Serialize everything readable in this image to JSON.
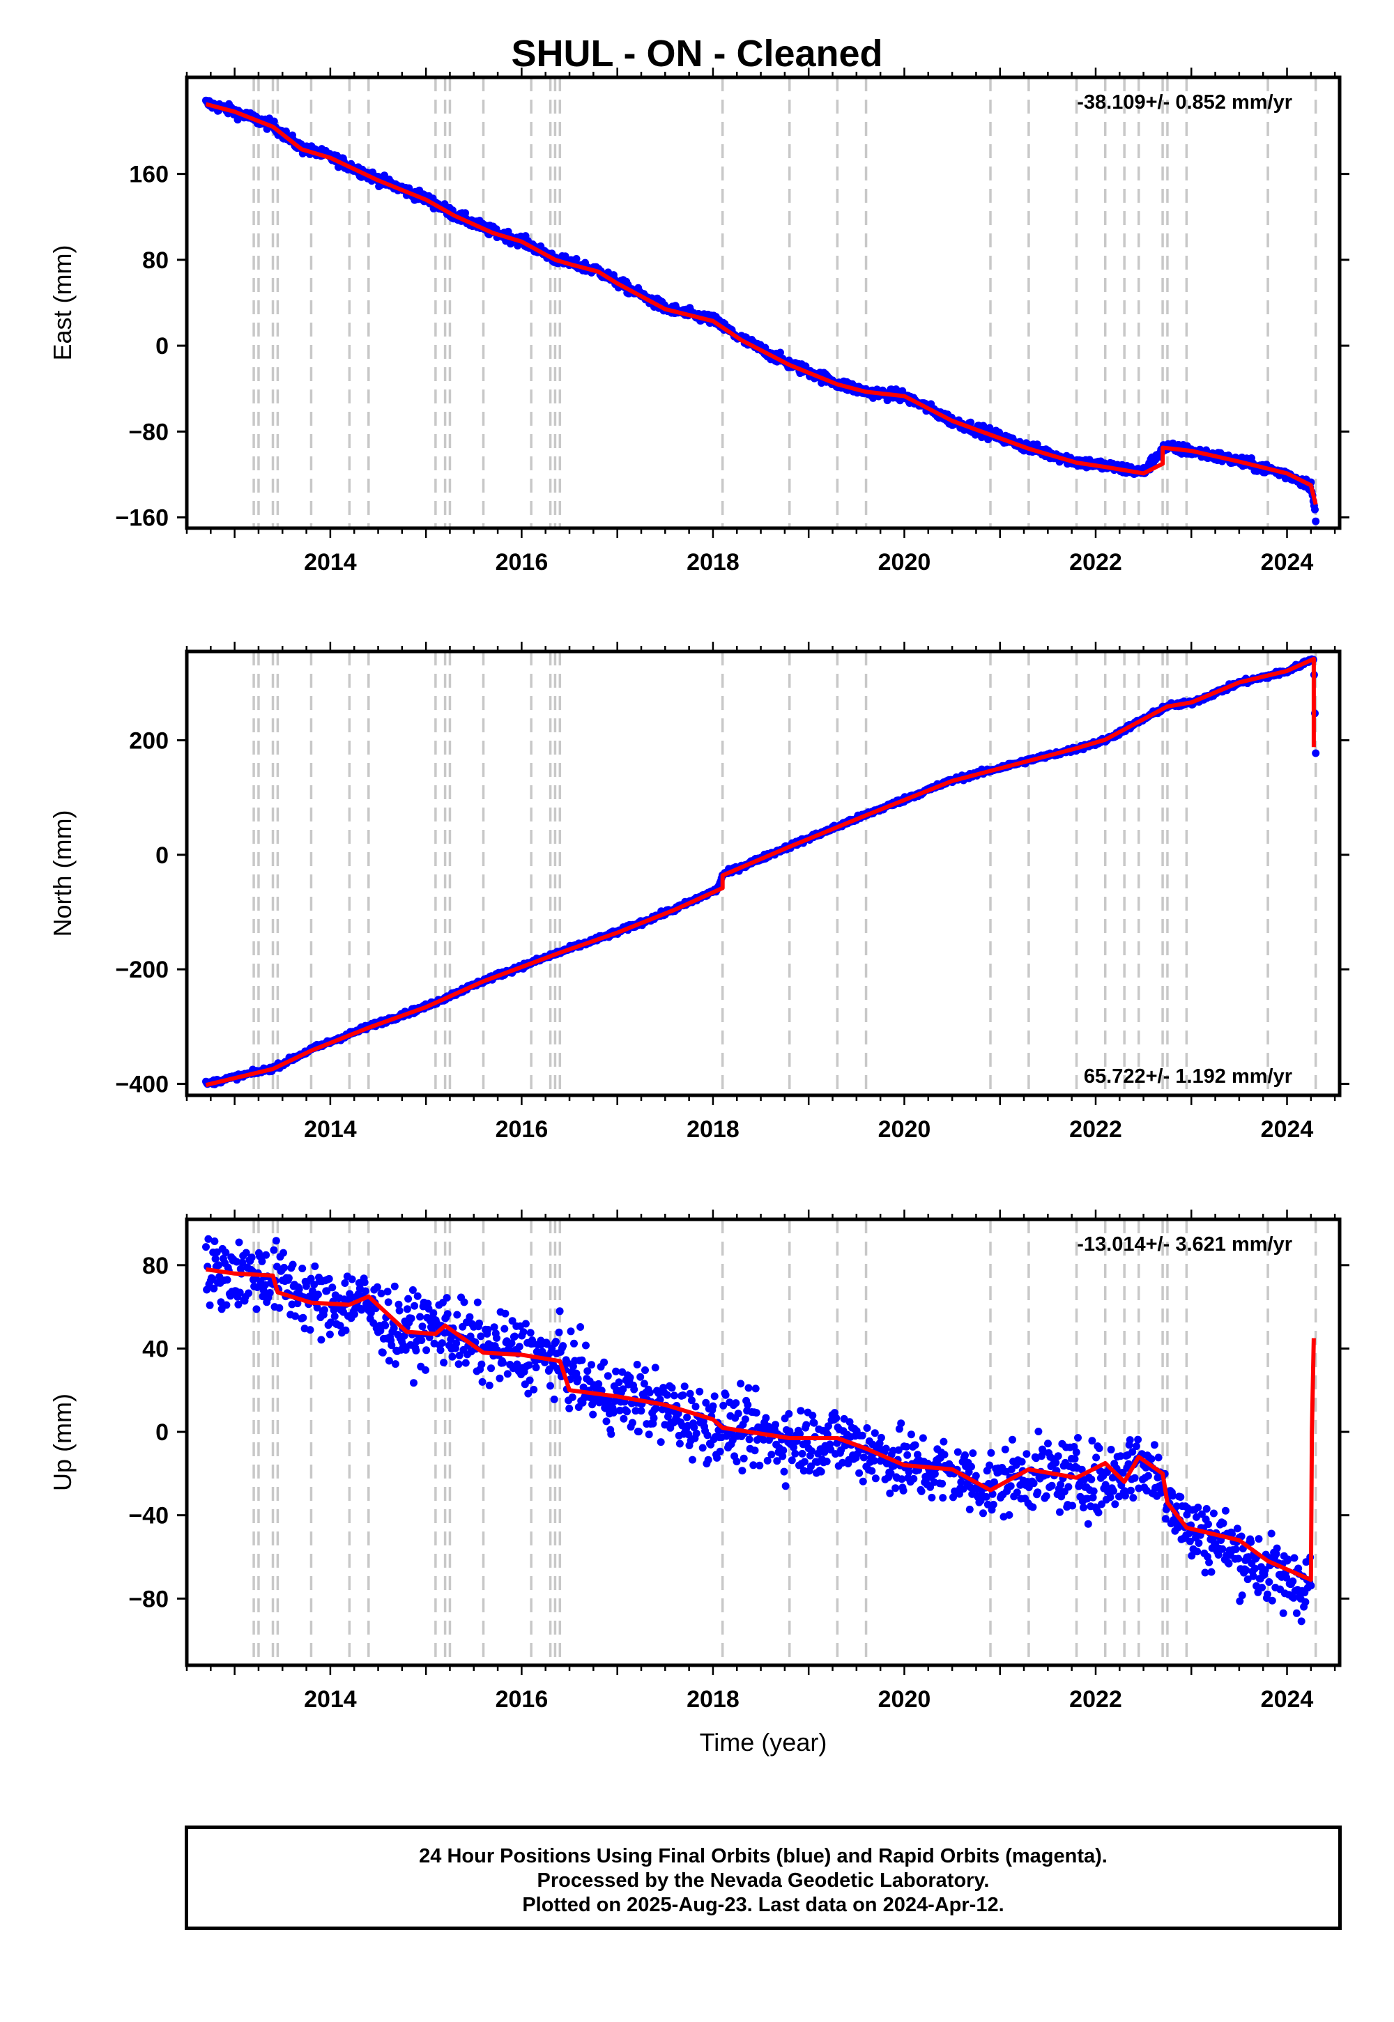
{
  "title": "SHUL  - ON - Cleaned",
  "footer": {
    "line1": "24 Hour Positions Using Final Orbits (blue) and Rapid Orbits (magenta).",
    "line2": "Processed by the Nevada Geodetic Laboratory.",
    "line3": "Plotted on 2025-Aug-23. Last data on 2024-Apr-12."
  },
  "colors": {
    "points": "#0000ff",
    "model": "#ff0000",
    "steps": "#c8c8c8",
    "axis": "#000000"
  },
  "steps": [
    2013.2,
    2013.25,
    2013.4,
    2013.45,
    2013.8,
    2014.2,
    2014.4,
    2015.1,
    2015.2,
    2015.25,
    2015.6,
    2016.1,
    2016.3,
    2016.35,
    2016.4,
    2018.1,
    2018.8,
    2019.3,
    2019.6,
    2020.9,
    2021.3,
    2021.8,
    2022.1,
    2022.3,
    2022.45,
    2022.7,
    2022.75,
    2022.95,
    2023.8,
    2024.3
  ],
  "chart_data": [
    {
      "type": "scatter",
      "panel": "east",
      "ylabel": "East (mm)",
      "xlabel": "",
      "rate_label": "-38.109+/- 0.852 mm/yr",
      "rate_position": "top-right",
      "xlim": [
        2012.5,
        2024.55
      ],
      "ylim": [
        -170,
        250
      ],
      "yticks": [
        160,
        80,
        0,
        -80,
        -160
      ],
      "ytick_labels": [
        "160",
        "80",
        "0",
        "−80",
        "−160"
      ],
      "xticks": [
        2014,
        2016,
        2018,
        2020,
        2022,
        2024
      ],
      "xtick_labels": [
        "2014",
        "2016",
        "2018",
        "2020",
        "2022",
        "2024"
      ],
      "series": [
        {
          "role": "observations",
          "scatter": 3.5,
          "x": [
            2012.7,
            2013.0,
            2013.4,
            2013.7,
            2014.0,
            2014.5,
            2015.0,
            2015.3,
            2015.7,
            2016.0,
            2016.35,
            2016.5,
            2016.8,
            2017.0,
            2017.5,
            2018.0,
            2018.3,
            2018.8,
            2019.3,
            2019.6,
            2020.0,
            2020.5,
            2020.9,
            2021.3,
            2021.8,
            2022.1,
            2022.5,
            2022.7,
            2022.75,
            2023.0,
            2023.5,
            2024.0,
            2024.25,
            2024.3
          ],
          "y": [
            226,
            218,
            205,
            184,
            176,
            155,
            137,
            122,
            106,
            98,
            81,
            77,
            70,
            59,
            35,
            24,
            6,
            -17,
            -35,
            -43,
            -47,
            -70,
            -82,
            -95,
            -108,
            -112,
            -118,
            -96,
            -95,
            -98,
            -108,
            -120,
            -130,
            -160
          ]
        },
        {
          "role": "model",
          "x": [
            2012.7,
            2013.0,
            2013.4,
            2013.7,
            2014.0,
            2014.5,
            2015.0,
            2015.3,
            2015.7,
            2016.0,
            2016.35,
            2016.5,
            2016.8,
            2017.0,
            2017.5,
            2018.0,
            2018.3,
            2018.8,
            2019.3,
            2019.6,
            2020.0,
            2020.5,
            2020.9,
            2021.3,
            2021.8,
            2022.1,
            2022.5,
            2022.7,
            2022.7,
            2023.0,
            2023.5,
            2024.0,
            2024.25,
            2024.3
          ],
          "y": [
            225,
            218,
            204,
            183,
            175,
            154,
            136,
            121,
            105,
            97,
            80,
            76,
            69,
            58,
            34,
            23,
            5,
            -18,
            -36,
            -43,
            -47,
            -70,
            -83,
            -96,
            -109,
            -113,
            -119,
            -110,
            -95,
            -98,
            -108,
            -119,
            -130,
            -148
          ]
        }
      ]
    },
    {
      "type": "scatter",
      "panel": "north",
      "ylabel": "North (mm)",
      "xlabel": "",
      "rate_label": "65.722+/- 1.192 mm/yr",
      "rate_position": "bottom-right",
      "xlim": [
        2012.5,
        2024.55
      ],
      "ylim": [
        -420,
        355
      ],
      "yticks": [
        200,
        0,
        -200,
        -400
      ],
      "ytick_labels": [
        "200",
        "0",
        "−200",
        "−400"
      ],
      "xticks": [
        2014,
        2016,
        2018,
        2020,
        2022,
        2024
      ],
      "xtick_labels": [
        "2014",
        "2016",
        "2018",
        "2020",
        "2022",
        "2024"
      ],
      "series": [
        {
          "role": "observations",
          "scatter": 3,
          "x": [
            2012.7,
            2013.4,
            2013.8,
            2014.4,
            2015.0,
            2015.6,
            2016.4,
            2017.0,
            2017.6,
            2018.05,
            2018.1,
            2018.8,
            2019.6,
            2020.5,
            2021.3,
            2021.8,
            2022.1,
            2022.75,
            2023.0,
            2023.5,
            2024.0,
            2024.28,
            2024.3
          ],
          "y": [
            -400,
            -373,
            -340,
            -300,
            -265,
            -220,
            -170,
            -135,
            -95,
            -60,
            -35,
            15,
            70,
            130,
            165,
            185,
            200,
            260,
            265,
            300,
            320,
            343,
            182
          ]
        },
        {
          "role": "model",
          "x": [
            2012.7,
            2013.4,
            2013.8,
            2014.4,
            2015.0,
            2015.6,
            2016.4,
            2017.0,
            2017.6,
            2018.1,
            2018.1,
            2018.8,
            2019.6,
            2020.5,
            2021.3,
            2021.8,
            2022.1,
            2022.75,
            2023.0,
            2023.5,
            2024.0,
            2024.28,
            2024.28
          ],
          "y": [
            -402,
            -374,
            -342,
            -302,
            -266,
            -221,
            -171,
            -136,
            -96,
            -58,
            -36,
            14,
            69,
            129,
            164,
            186,
            201,
            259,
            266,
            301,
            321,
            342,
            188
          ]
        }
      ]
    },
    {
      "type": "scatter",
      "panel": "up",
      "ylabel": "Up (mm)",
      "xlabel": "Time (year)",
      "rate_label": "-13.014+/- 3.621 mm/yr",
      "rate_position": "top-right",
      "xlim": [
        2012.5,
        2024.55
      ],
      "ylim": [
        -112,
        102
      ],
      "yticks": [
        80,
        40,
        0,
        -40,
        -80
      ],
      "ytick_labels": [
        "80",
        "40",
        "0",
        "−40",
        "−80"
      ],
      "xticks": [
        2014,
        2016,
        2018,
        2020,
        2022,
        2024
      ],
      "xtick_labels": [
        "2014",
        "2016",
        "2018",
        "2020",
        "2022",
        "2024"
      ],
      "series": [
        {
          "role": "observations",
          "scatter": 12,
          "x": [
            2012.7,
            2013.0,
            2013.4,
            2013.8,
            2014.0,
            2014.3,
            2014.7,
            2015.2,
            2015.6,
            2016.0,
            2016.4,
            2016.8,
            2017.3,
            2017.8,
            2018.1,
            2018.5,
            2018.8,
            2019.3,
            2019.6,
            2020.0,
            2020.5,
            2020.9,
            2021.3,
            2021.8,
            2022.1,
            2022.45,
            2022.7,
            2022.95,
            2023.3,
            2023.7,
            2024.0,
            2024.25
          ],
          "y": [
            76,
            76,
            74,
            64,
            60,
            64,
            48,
            50,
            40,
            38,
            34,
            18,
            15,
            5,
            3,
            -2,
            -4,
            -4,
            -8,
            -16,
            -20,
            -26,
            -20,
            -22,
            -24,
            -14,
            -24,
            -46,
            -52,
            -64,
            -72,
            -72
          ]
        },
        {
          "role": "model",
          "x": [
            2012.7,
            2013.0,
            2013.4,
            2013.45,
            2013.8,
            2014.2,
            2014.4,
            2014.8,
            2015.1,
            2015.2,
            2015.6,
            2016.0,
            2016.4,
            2016.5,
            2017.0,
            2017.5,
            2018.0,
            2018.1,
            2018.8,
            2019.3,
            2019.6,
            2020.0,
            2020.5,
            2020.9,
            2021.3,
            2021.8,
            2022.1,
            2022.3,
            2022.45,
            2022.7,
            2022.75,
            2022.95,
            2023.5,
            2023.8,
            2024.25,
            2024.26,
            2024.28
          ],
          "y": [
            78,
            76,
            75,
            67,
            62,
            61,
            65,
            48,
            47,
            51,
            38,
            37,
            34,
            20,
            17,
            13,
            6,
            2,
            -3,
            -3,
            -8,
            -16,
            -18,
            -28,
            -18,
            -22,
            -15,
            -24,
            -12,
            -20,
            -34,
            -46,
            -52,
            -62,
            -71,
            0,
            45
          ]
        }
      ]
    }
  ]
}
